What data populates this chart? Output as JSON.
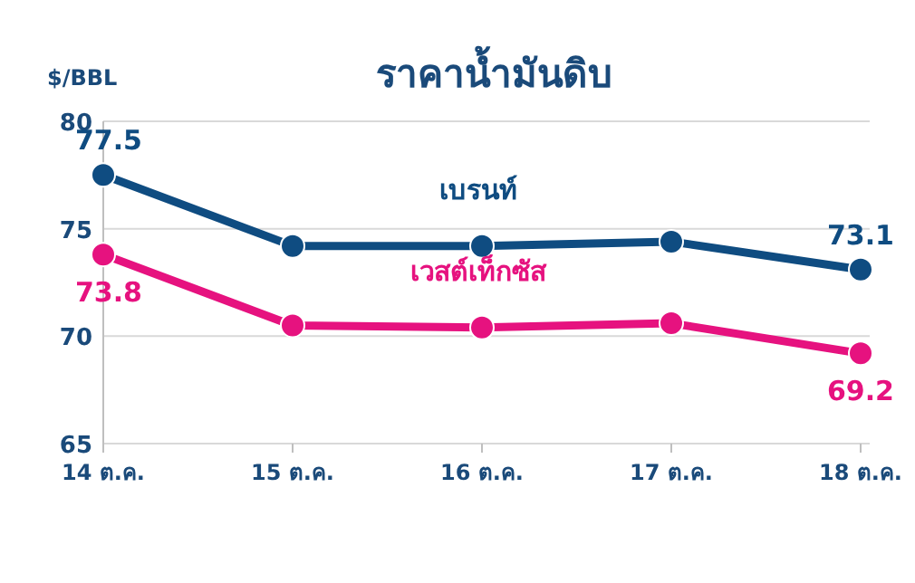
{
  "chart_data": {
    "type": "line",
    "title": "ราคาน้ำมันดิบ",
    "ylabel": "$/BBL",
    "categories": [
      "14 ต.ค.",
      "15 ต.ค.",
      "16 ต.ค.",
      "17 ต.ค.",
      "18 ต.ค."
    ],
    "series": [
      {
        "name": "เบรนท์",
        "color": "#0f4c81",
        "values": [
          77.5,
          74.2,
          74.2,
          74.4,
          73.1
        ],
        "value_labels": [
          "77.5",
          null,
          null,
          null,
          "73.1"
        ]
      },
      {
        "name": "เวสต์เท็กซัส",
        "color": "#e6127f",
        "values": [
          73.8,
          70.5,
          70.4,
          70.6,
          69.2
        ],
        "value_labels": [
          "73.8",
          null,
          null,
          null,
          "69.2"
        ]
      }
    ],
    "ylim": [
      65,
      80
    ],
    "yticks": [
      65,
      70,
      75,
      80
    ],
    "grid": "y",
    "marker": "circle",
    "line_style": "solid"
  }
}
